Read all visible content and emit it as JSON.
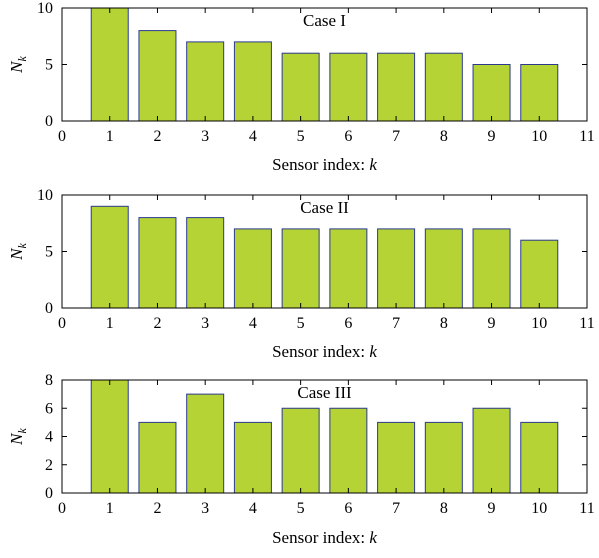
{
  "colors": {
    "bar_fill": "#b5d334",
    "bar_stroke": "#2b3a8f",
    "axis": "#000000"
  },
  "chart_data": [
    {
      "type": "bar",
      "annotation": "Case I",
      "xlabel": "Sensor index: ",
      "xlabel_var": "k",
      "ylabel_main": "N",
      "ylabel_sub": "k",
      "xlim": [
        0,
        11
      ],
      "ylim": [
        0,
        10
      ],
      "xticks": [
        "0",
        "1",
        "2",
        "3",
        "4",
        "5",
        "6",
        "7",
        "8",
        "9",
        "10",
        "11"
      ],
      "yticks": [
        "0",
        "5",
        "10"
      ],
      "x": [
        1,
        2,
        3,
        4,
        5,
        6,
        7,
        8,
        9,
        10
      ],
      "values": [
        10,
        8,
        7,
        7,
        6,
        6,
        6,
        6,
        5,
        5
      ]
    },
    {
      "type": "bar",
      "annotation": "Case II",
      "xlabel": "Sensor index: ",
      "xlabel_var": "k",
      "ylabel_main": "N",
      "ylabel_sub": "k",
      "xlim": [
        0,
        11
      ],
      "ylim": [
        0,
        10
      ],
      "xticks": [
        "0",
        "1",
        "2",
        "3",
        "4",
        "5",
        "6",
        "7",
        "8",
        "9",
        "10",
        "11"
      ],
      "yticks": [
        "0",
        "5",
        "10"
      ],
      "x": [
        1,
        2,
        3,
        4,
        5,
        6,
        7,
        8,
        9,
        10
      ],
      "values": [
        9,
        8,
        8,
        7,
        7,
        7,
        7,
        7,
        7,
        6
      ]
    },
    {
      "type": "bar",
      "annotation": "Case III",
      "xlabel": "Sensor index: ",
      "xlabel_var": "k",
      "ylabel_main": "N",
      "ylabel_sub": "k",
      "xlim": [
        0,
        11
      ],
      "ylim": [
        0,
        8
      ],
      "xticks": [
        "0",
        "1",
        "2",
        "3",
        "4",
        "5",
        "6",
        "7",
        "8",
        "9",
        "10",
        "11"
      ],
      "yticks": [
        "0",
        "2",
        "4",
        "6",
        "8"
      ],
      "x": [
        1,
        2,
        3,
        4,
        5,
        6,
        7,
        8,
        9,
        10
      ],
      "values": [
        8,
        5,
        7,
        5,
        6,
        6,
        5,
        5,
        6,
        5
      ]
    }
  ]
}
